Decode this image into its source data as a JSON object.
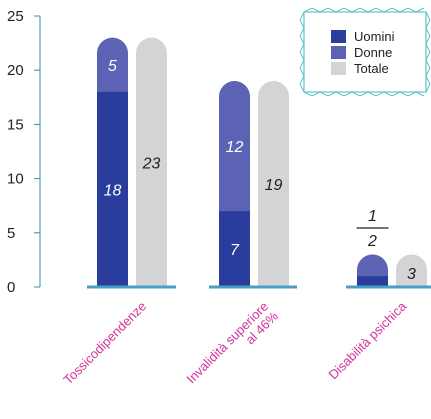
{
  "chart_data": {
    "type": "bar",
    "categories": [
      "Tossicodipendenze",
      "Invalidità superiore al 46%",
      "Disabilità psichica"
    ],
    "category_label_lines": [
      [
        "Tossicodipendenze"
      ],
      [
        "Invalidità superiore",
        "al 46%"
      ],
      [
        "Disabilità psichica"
      ]
    ],
    "series": [
      {
        "name": "Uomini",
        "values": [
          18,
          7,
          1
        ]
      },
      {
        "name": "Donne",
        "values": [
          5,
          12,
          2
        ]
      },
      {
        "name": "Totale",
        "values": [
          23,
          19,
          3
        ]
      }
    ],
    "stacked_series": [
      "Uomini",
      "Donne"
    ],
    "ylim": [
      0,
      25
    ],
    "yticks": [
      0,
      5,
      10,
      15,
      20,
      25
    ],
    "legend_position": "top-right",
    "colors": {
      "Uomini": "#2a3d9c",
      "Donne": "#5c62b4",
      "Totale": "#d3d4d6",
      "baseline": "#4a9ec6",
      "axis": "#2e8fba",
      "category_text": "#d4329a",
      "legend_border": "#5cc2cf"
    }
  }
}
